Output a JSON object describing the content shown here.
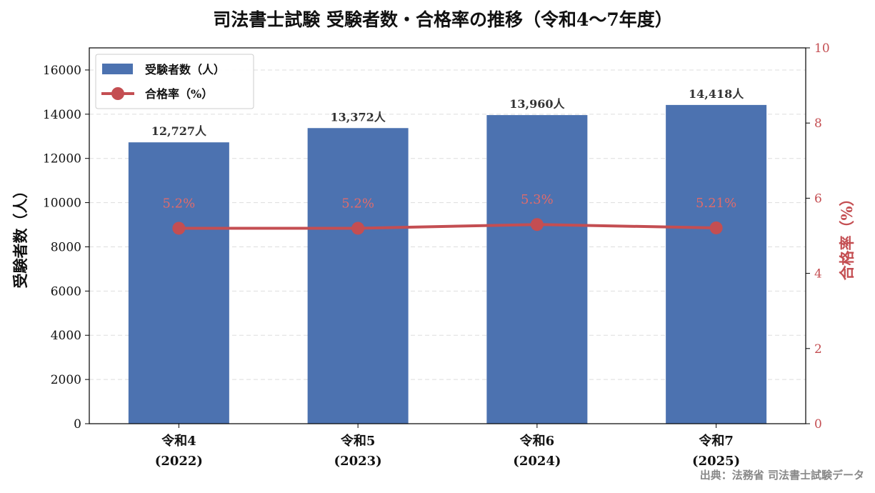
{
  "chart_data": {
    "type": "bar+line",
    "title": "司法書士試験 受験者数・合格率の推移（令和4〜7年度）",
    "categories": [
      {
        "line1": "令和4",
        "line2": "(2022)"
      },
      {
        "line1": "令和5",
        "line2": "(2023)"
      },
      {
        "line1": "令和6",
        "line2": "(2024)"
      },
      {
        "line1": "令和7",
        "line2": "(2025)"
      }
    ],
    "series": [
      {
        "name": "受験者数（人）",
        "kind": "bar",
        "axis": "left",
        "values": [
          12727,
          13372,
          13960,
          14418
        ],
        "labels": [
          "12,727人",
          "13,372人",
          "13,960人",
          "14,418人"
        ],
        "color": "#4c72b0"
      },
      {
        "name": "合格率（%）",
        "kind": "line",
        "axis": "right",
        "values": [
          5.2,
          5.2,
          5.3,
          5.21
        ],
        "labels": [
          "5.2%",
          "5.2%",
          "5.3%",
          "5.21%"
        ],
        "color": "#c44e52"
      }
    ],
    "ylabel": "受験者数（人）",
    "y2label": "合格率（%）",
    "ylim": [
      0,
      17000
    ],
    "yticks": [
      0,
      2000,
      4000,
      6000,
      8000,
      10000,
      12000,
      14000,
      16000
    ],
    "y2lim": [
      0,
      10
    ],
    "y2ticks": [
      0,
      2,
      4,
      6,
      8,
      10
    ],
    "grid": "horizontal dashed",
    "legend_position": "top-left",
    "source": "出典：法務省 司法書士試験データ"
  }
}
